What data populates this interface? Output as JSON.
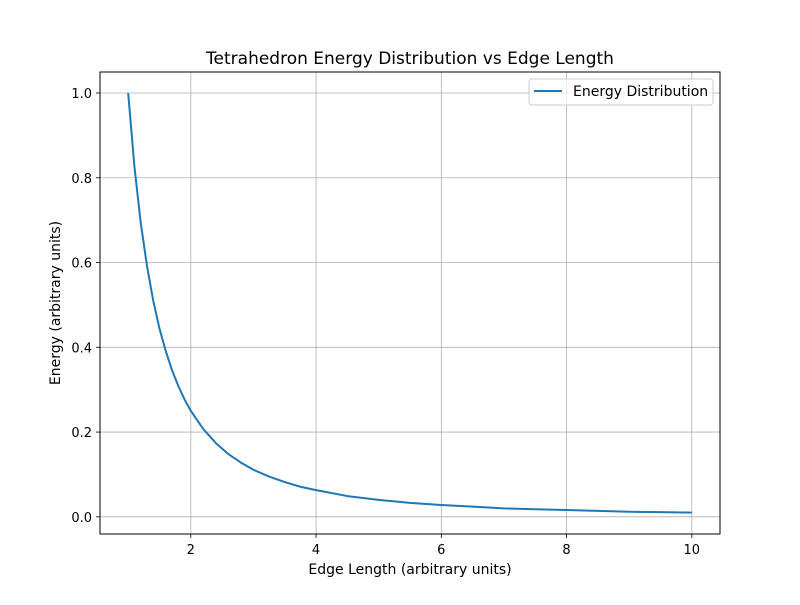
{
  "chart_data": {
    "type": "line",
    "title": "Tetrahedron Energy Distribution vs Edge Length",
    "xlabel": "Edge Length (arbitrary units)",
    "ylabel": "Energy (arbitrary units)",
    "xlim": [
      0.55,
      10.45
    ],
    "ylim": [
      -0.0405,
      1.0495
    ],
    "xticks": [
      2,
      4,
      6,
      8,
      10
    ],
    "xtick_labels": [
      "2",
      "4",
      "6",
      "8",
      "10"
    ],
    "yticks": [
      0.0,
      0.2,
      0.4,
      0.6,
      0.8,
      1.0
    ],
    "ytick_labels": [
      "0.0",
      "0.2",
      "0.4",
      "0.6",
      "0.8",
      "1.0"
    ],
    "grid": true,
    "legend_position": "top-right",
    "series": [
      {
        "name": "Energy Distribution",
        "color": "#1f77b4",
        "x": [
          1.0,
          1.1,
          1.2,
          1.3,
          1.4,
          1.5,
          1.6,
          1.7,
          1.8,
          1.9,
          2.0,
          2.2,
          2.4,
          2.6,
          2.8,
          3.0,
          3.25,
          3.5,
          3.75,
          4.0,
          4.5,
          5.0,
          5.5,
          6.0,
          6.5,
          7.0,
          7.5,
          8.0,
          8.5,
          9.0,
          9.5,
          10.0
        ],
        "y": [
          1.0,
          0.826,
          0.694,
          0.592,
          0.51,
          0.444,
          0.391,
          0.346,
          0.309,
          0.277,
          0.25,
          0.207,
          0.174,
          0.148,
          0.128,
          0.111,
          0.095,
          0.082,
          0.071,
          0.063,
          0.049,
          0.04,
          0.033,
          0.028,
          0.024,
          0.02,
          0.018,
          0.016,
          0.014,
          0.012,
          0.011,
          0.01
        ]
      }
    ]
  }
}
